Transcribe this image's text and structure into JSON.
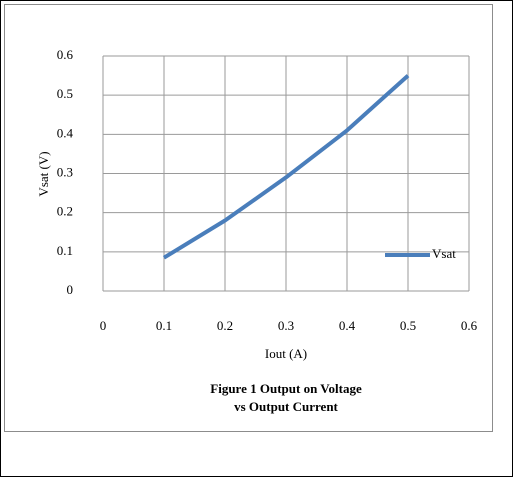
{
  "chart_data": {
    "type": "line",
    "title": [
      "Figure 1  Output on Voltage",
      "vs Output Current"
    ],
    "x_label": "Iout (A)",
    "y_label": "Vsat (V)",
    "x": [
      0.1,
      0.2,
      0.3,
      0.4,
      0.5
    ],
    "series": [
      {
        "name": "Vsat",
        "color": "#4a7ebb",
        "values": [
          0.085,
          0.18,
          0.29,
          0.41,
          0.55
        ]
      }
    ],
    "xlim": [
      0,
      0.6
    ],
    "xticks": [
      0,
      0.1,
      0.2,
      0.3,
      0.4,
      0.5,
      0.6
    ],
    "ylim": [
      0,
      0.6
    ],
    "yticks": [
      0,
      0.1,
      0.2,
      0.3,
      0.4,
      0.5,
      0.6
    ],
    "grid": true,
    "legend": "right"
  }
}
